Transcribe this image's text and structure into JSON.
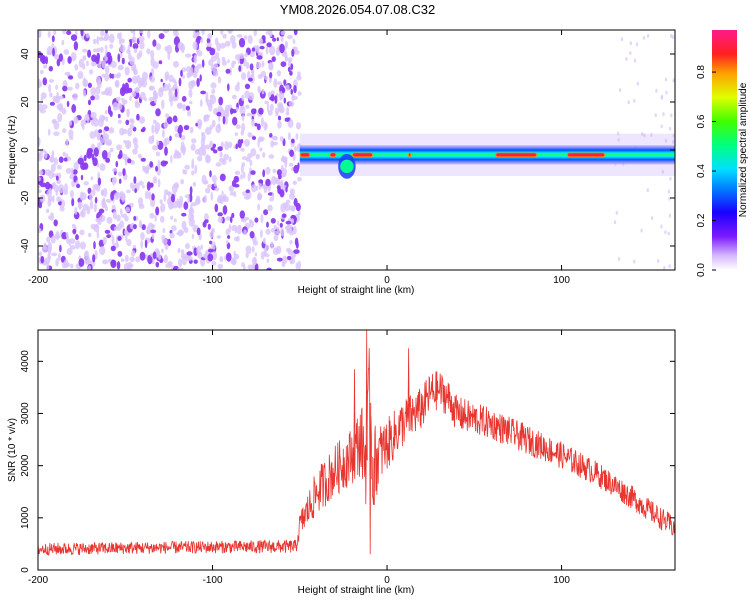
{
  "title": "YM08.2026.054.07.08.C32",
  "colors": {
    "snr_line": "#e8352f",
    "speckle": "#8b3cf0",
    "speckle_light": "#d9c4fb",
    "frame": "#000000"
  },
  "chart_data": [
    {
      "type": "heatmap",
      "title": "YM08.2026.054.07.08.C32",
      "xlabel": "Height of straight line (km)",
      "ylabel": "Frequency (Hz)",
      "xlim": [
        -200,
        165
      ],
      "ylim": [
        -50,
        50
      ],
      "xticks": [
        -200,
        -100,
        0,
        100
      ],
      "xtick_labels": [
        "-200",
        "-100",
        "0",
        "100"
      ],
      "yticks": [
        -40,
        -20,
        0,
        20,
        40
      ],
      "ytick_labels": [
        "-40",
        "-20",
        "0",
        "20",
        "40"
      ],
      "noise_region_x": [
        -200,
        -50
      ],
      "signal_band": {
        "x_start": -50,
        "x_end": 165,
        "center_freq_hz": -2,
        "half_width_hz": 4,
        "peak_segments_x": [
          [
            -50,
            -44
          ],
          [
            -33,
            -29
          ],
          [
            -20,
            -8
          ],
          [
            12,
            14
          ],
          [
            62,
            86
          ],
          [
            103,
            125
          ]
        ],
        "distortion_x": [
          -28,
          -18
        ]
      },
      "colorbar": {
        "label": "Normalized spectral amplitude",
        "range": [
          0,
          0.97
        ],
        "ticks": [
          0.0,
          0.2,
          0.4,
          0.6,
          0.8
        ],
        "tick_labels": [
          "0.0",
          "0.2",
          "0.4",
          "0.6",
          "0.8"
        ]
      }
    },
    {
      "type": "line",
      "title": "",
      "xlabel": "Height of straight line (km)",
      "ylabel": "SNR (10 * v/v)",
      "xlim": [
        -200,
        165
      ],
      "ylim": [
        0,
        4600
      ],
      "xticks": [
        -200,
        -100,
        0,
        100
      ],
      "xtick_labels": [
        "-200",
        "-100",
        "0",
        "100"
      ],
      "yticks": [
        0,
        1000,
        2000,
        3000,
        4000
      ],
      "ytick_labels": [
        "0",
        "1000",
        "2000",
        "3000",
        "4000"
      ],
      "envelope": {
        "x": [
          -200,
          -150,
          -100,
          -52,
          -50,
          -40,
          -30,
          -20,
          -15,
          -12,
          -10,
          -8,
          -5,
          0,
          10,
          20,
          25,
          30,
          35,
          40,
          50,
          60,
          80,
          100,
          120,
          140,
          150,
          165
        ],
        "y": [
          400,
          420,
          440,
          450,
          850,
          1500,
          1900,
          2200,
          2500,
          2100,
          3200,
          1900,
          2200,
          2400,
          2850,
          3100,
          3400,
          3450,
          3300,
          3000,
          2900,
          2800,
          2500,
          2200,
          1850,
          1400,
          1150,
          800
        ],
        "noise_amplitude": [
          120,
          120,
          120,
          130,
          250,
          450,
          500,
          550,
          700,
          900,
          1200,
          900,
          600,
          500,
          450,
          420,
          400,
          380,
          360,
          340,
          320,
          300,
          280,
          260,
          240,
          230,
          220,
          220
        ]
      },
      "spikes": [
        {
          "x": -12,
          "y": 4600
        },
        {
          "x": -10,
          "y": 300
        },
        {
          "x": -19,
          "y": 3850
        },
        {
          "x": 12,
          "y": 4250
        }
      ]
    }
  ]
}
